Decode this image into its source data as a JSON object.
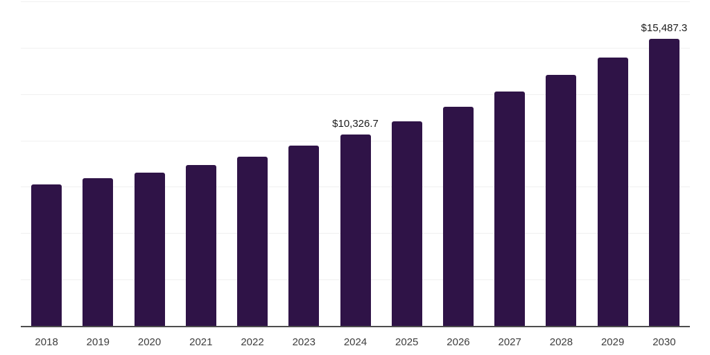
{
  "chart_data": {
    "type": "bar",
    "title": "",
    "xlabel": "",
    "ylabel": "",
    "categories": [
      "2018",
      "2019",
      "2020",
      "2021",
      "2022",
      "2023",
      "2024",
      "2025",
      "2026",
      "2027",
      "2028",
      "2029",
      "2030"
    ],
    "values": [
      7630,
      7960,
      8260,
      8670,
      9120,
      9720,
      10326.7,
      11048,
      11820,
      12646,
      13530,
      14476,
      15487.3
    ],
    "labeled_points": [
      {
        "category": "2024",
        "value": 10326.7,
        "text": "$10,326.7"
      },
      {
        "category": "2030",
        "value": 15487.3,
        "text": "$15,487.3"
      }
    ],
    "ylim": [
      0,
      17500
    ],
    "grid_step": 2500,
    "grid": true,
    "legend_position": "none",
    "y_axis_tick_labels_visible": false
  },
  "colors": {
    "background": "#ffffff",
    "bar": "#2f1347",
    "gridline": "#f0f0f0",
    "axis_line": "#4d4d4d",
    "data_label_text": "#1c1c1c",
    "tick_label_text": "#3d3d3d"
  }
}
